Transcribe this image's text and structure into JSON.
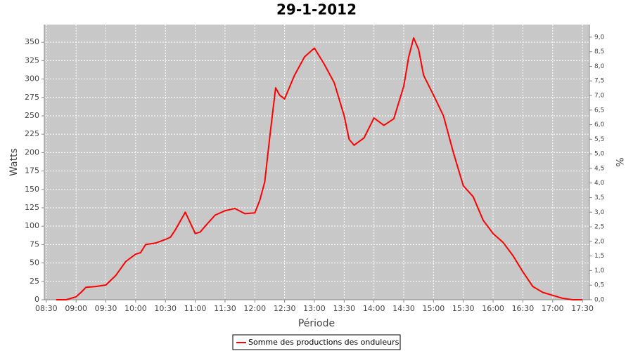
{
  "chart_data": {
    "type": "line",
    "title": "29-1-2012",
    "x_label": "Période",
    "y_label": "Watts",
    "y2_label": "%",
    "x": [
      "08:40",
      "08:50",
      "09:00",
      "09:05",
      "09:10",
      "09:20",
      "09:30",
      "09:40",
      "09:50",
      "10:00",
      "10:05",
      "10:10",
      "10:20",
      "10:30",
      "10:35",
      "10:40",
      "10:50",
      "11:00",
      "11:05",
      "11:10",
      "11:20",
      "11:30",
      "11:40",
      "11:50",
      "12:00",
      "12:05",
      "12:10",
      "12:15",
      "12:21",
      "12:25",
      "12:30",
      "12:40",
      "12:50",
      "13:00",
      "13:10",
      "13:20",
      "13:30",
      "13:35",
      "13:40",
      "13:50",
      "14:00",
      "14:10",
      "14:20",
      "14:30",
      "14:35",
      "14:40",
      "14:45",
      "14:50",
      "15:00",
      "15:10",
      "15:20",
      "15:30",
      "15:40",
      "15:50",
      "16:00",
      "16:10",
      "16:20",
      "16:30",
      "16:40",
      "16:50",
      "17:00",
      "17:10",
      "17:20",
      "17:30"
    ],
    "series": [
      {
        "name": "Somme des productions des onduleurs",
        "color": "#ff0000",
        "values": [
          0,
          0,
          4,
          10,
          17,
          18,
          20,
          33,
          52,
          62,
          64,
          75,
          77,
          82,
          85,
          95,
          119,
          90,
          92,
          100,
          115,
          121,
          124,
          117,
          118,
          135,
          160,
          220,
          288,
          278,
          273,
          305,
          330,
          342,
          320,
          295,
          250,
          218,
          210,
          220,
          247,
          237,
          246,
          290,
          330,
          356,
          340,
          305,
          278,
          250,
          200,
          155,
          140,
          108,
          90,
          78,
          60,
          38,
          18,
          10,
          6,
          2,
          0,
          0
        ]
      }
    ],
    "xlim": [
      "08:28",
      "17:37"
    ],
    "xticks": [
      "08:30",
      "09:00",
      "09:30",
      "10:00",
      "10:30",
      "11:00",
      "11:30",
      "12:00",
      "12:30",
      "13:00",
      "13:30",
      "14:00",
      "14:30",
      "15:00",
      "15:30",
      "16:00",
      "16:30",
      "17:00",
      "17:30"
    ],
    "ylim": [
      0,
      374
    ],
    "yticks": [
      0,
      25,
      50,
      75,
      100,
      125,
      150,
      175,
      200,
      225,
      250,
      275,
      300,
      325,
      350
    ],
    "y2lim": [
      0,
      9.43
    ],
    "y2ticks": [
      {
        "value": 0,
        "label": "0,0"
      },
      {
        "value": 0.5,
        "label": "0,5"
      },
      {
        "value": 1,
        "label": "1,0"
      },
      {
        "value": 1.5,
        "label": "1,5"
      },
      {
        "value": 2,
        "label": "2,0"
      },
      {
        "value": 2.5,
        "label": "2,5"
      },
      {
        "value": 3,
        "label": "3,0"
      },
      {
        "value": 3.5,
        "label": "3,5"
      },
      {
        "value": 4,
        "label": "4,0"
      },
      {
        "value": 4.5,
        "label": "4,5"
      },
      {
        "value": 5,
        "label": "5,0"
      },
      {
        "value": 5.5,
        "label": "5,5"
      },
      {
        "value": 6,
        "label": "6,0"
      },
      {
        "value": 6.5,
        "label": "6,5"
      },
      {
        "value": 7,
        "label": "7,0"
      },
      {
        "value": 7.5,
        "label": "7,5"
      },
      {
        "value": 8,
        "label": "8,0"
      },
      {
        "value": 8.5,
        "label": "8,5"
      },
      {
        "value": 9,
        "label": "9,0"
      }
    ],
    "grid": true,
    "legend": "bottom"
  }
}
